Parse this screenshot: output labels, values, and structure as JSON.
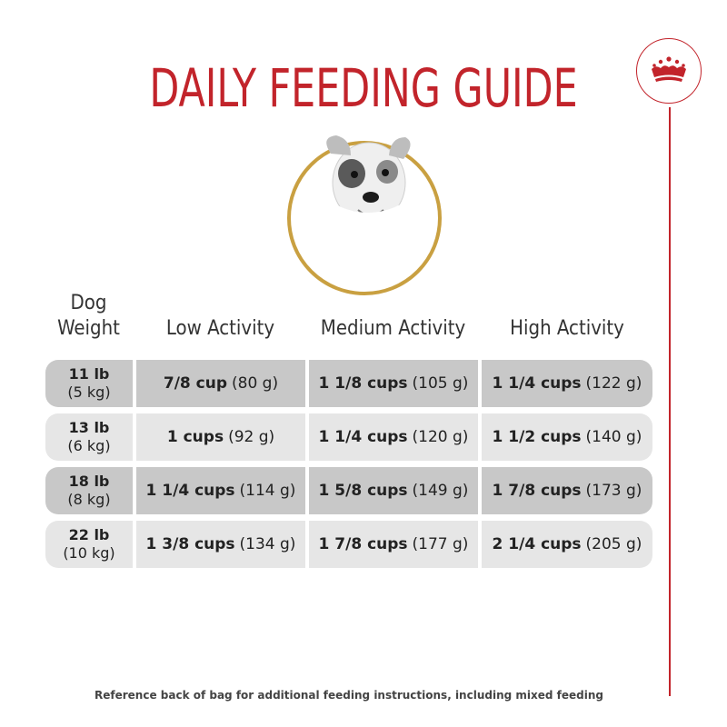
{
  "title": "DAILY FEEDING GUIDE",
  "brand": {
    "icon": "crown-icon",
    "color": "#c2242b"
  },
  "portrait": {
    "icon": "dog-photo",
    "ring_color": "#c9a041"
  },
  "headers": {
    "weight_line1": "Dog",
    "weight_line2": "Weight",
    "low": "Low Activity",
    "medium": "Medium Activity",
    "high": "High Activity"
  },
  "rows": [
    {
      "lb": "11 lb",
      "kg": "(5 kg)",
      "low": {
        "cups": "7/8 cup",
        "grams": "(80 g)"
      },
      "medium": {
        "cups": "1 1/8 cups",
        "grams": "(105 g)"
      },
      "high": {
        "cups": "1 1/4 cups",
        "grams": "(122 g)"
      }
    },
    {
      "lb": "13 lb",
      "kg": "(6 kg)",
      "low": {
        "cups": "1 cups",
        "grams": "(92 g)"
      },
      "medium": {
        "cups": "1 1/4 cups",
        "grams": "(120 g)"
      },
      "high": {
        "cups": "1 1/2 cups",
        "grams": "(140 g)"
      }
    },
    {
      "lb": "18 lb",
      "kg": "(8 kg)",
      "low": {
        "cups": "1 1/4 cups",
        "grams": "(114 g)"
      },
      "medium": {
        "cups": "1 5/8 cups",
        "grams": "(149 g)"
      },
      "high": {
        "cups": "1 7/8 cups",
        "grams": "(173 g)"
      }
    },
    {
      "lb": "22 lb",
      "kg": "(10 kg)",
      "low": {
        "cups": "1 3/8 cups",
        "grams": "(134 g)"
      },
      "medium": {
        "cups": "1 7/8 cups",
        "grams": "(177 g)"
      },
      "high": {
        "cups": "2 1/4 cups",
        "grams": "(205 g)"
      }
    }
  ],
  "footnote": "Reference back of bag for additional feeding instructions, including mixed feeding",
  "colors": {
    "row_dark": "#c8c8c8",
    "row_light": "#e6e6e6",
    "title": "#c2242b"
  }
}
